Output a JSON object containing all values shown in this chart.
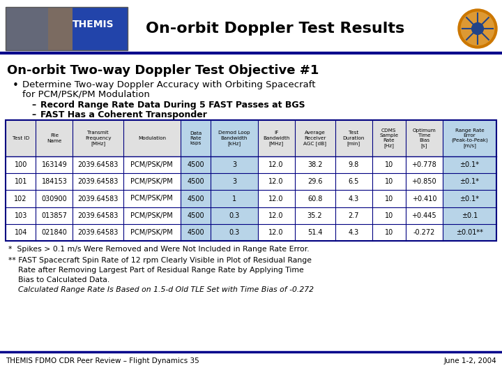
{
  "title_header": "On-orbit Doppler Test Results",
  "main_title": "On-orbit Two-way Doppler Test Objective #1",
  "table_headers_line1": [
    "Test ID",
    "File",
    "Transmit",
    "Modulation",
    "Data",
    "Demod Loop",
    "IF",
    "Average",
    "Test",
    "CDMS",
    "Optimum",
    "Range Rate"
  ],
  "table_headers_line2": [
    "",
    "Name",
    "Frequency",
    "",
    "Rate",
    "Bandwidth",
    "Bandwidth",
    "Receiver",
    "Duration",
    "Sample",
    "Time",
    "Error"
  ],
  "table_headers_line3": [
    "",
    "",
    "[MHz]",
    "",
    "ksps",
    "[kHz]",
    "[MHz]",
    "AGC [dB]",
    "[min]",
    "Rate",
    "Bias",
    "(Peak-to-Peak)"
  ],
  "table_headers_line4": [
    "",
    "",
    "",
    "",
    "",
    "",
    "",
    "",
    "",
    "[Hz]",
    "[s]",
    "[m/s]"
  ],
  "rows": [
    [
      "100",
      "163149",
      "2039.64583",
      "PCM/PSK/PM",
      "4500",
      "3",
      "12.0",
      "38.2",
      "9.8",
      "10",
      "+0.778",
      "±0.1*"
    ],
    [
      "101",
      "184153",
      "2039.64583",
      "PCM/PSK/PM",
      "4500",
      "3",
      "12.0",
      "29.6",
      "6.5",
      "10",
      "+0.850",
      "±0.1*"
    ],
    [
      "102",
      "030900",
      "2039.64583",
      "PCM/PSK/PM",
      "4500",
      "1",
      "12.0",
      "60.8",
      "4.3",
      "10",
      "+0.410",
      "±0.1*"
    ],
    [
      "103",
      "013857",
      "2039.64583",
      "PCM/PSK/PM",
      "4500",
      "0.3",
      "12.0",
      "35.2",
      "2.7",
      "10",
      "+0.445",
      "±0.1"
    ],
    [
      "104",
      "021840",
      "2039.64583",
      "PCM/PSK/PM",
      "4500",
      "0.3",
      "12.0",
      "51.4",
      "4.3",
      "10",
      "-0.272",
      "±0.01**"
    ]
  ],
  "col_widths_rel": [
    4.5,
    5.5,
    7.5,
    8.5,
    4.5,
    7.0,
    5.5,
    6.0,
    5.5,
    5.0,
    5.5,
    8.0
  ],
  "highlight_cols": [
    4,
    5,
    11
  ],
  "note1": "*  Spikes > 0.1 m/s Were Removed and Were Not Included in Range Rate Error.",
  "note2": "** FAST Spacecraft Spin Rate of 12 rpm Clearly Visible in Plot of Residual Range",
  "note2b": "    Rate after Removing Largest Part of Residual Range Rate by Applying Time",
  "note2c": "    Bias to Calculated Data.",
  "note3": "    Calculated Range Rate Is Based on 1.5-d Old TLE Set with Time Bias of -0.272",
  "footer_left": "THEMIS FDMO CDR Peer Review – Flight Dynamics 35",
  "footer_right": "June 1-2, 2004",
  "bg_color": "#ffffff",
  "dark_blue": "#00008B",
  "table_border": "#000080",
  "highlight_bg": "#b8d4e8",
  "footer_line_color": "#00008B"
}
